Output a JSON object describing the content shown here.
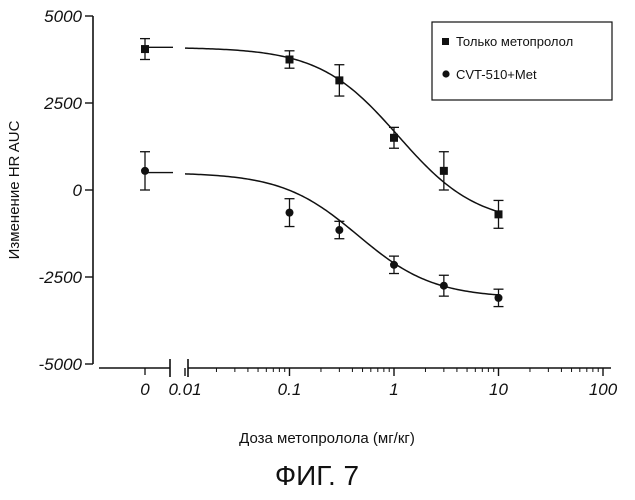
{
  "figure_label": "ФИГ. 7",
  "chart_data": {
    "type": "scatter",
    "xlabel": "Доза метопролола (мг/кг)",
    "ylabel": "Изменение HR AUC",
    "xscale": "log",
    "xlim": [
      0.01,
      100
    ],
    "ylim": [
      -5000,
      5000
    ],
    "y_ticks": [
      "5000",
      "2500",
      "0",
      "-2500",
      "-5000"
    ],
    "x_ticks": [
      "0.01",
      "0.1",
      "1",
      "10",
      "100"
    ],
    "zero_dose_tick": "0",
    "legend_position": "top-right",
    "grid": false,
    "series": [
      {
        "name": "Только метопролол",
        "marker": "square",
        "zero_dose": {
          "y": 4050,
          "err": 300
        },
        "points": [
          {
            "x": 0.1,
            "y": 3750,
            "err": 250
          },
          {
            "x": 0.3,
            "y": 3150,
            "err": 450
          },
          {
            "x": 1,
            "y": 1500,
            "err": 300
          },
          {
            "x": 3,
            "y": 550,
            "err": 550
          },
          {
            "x": 10,
            "y": -700,
            "err": 400
          }
        ],
        "curve": {
          "top": 4100,
          "bottom": -1000,
          "ec50": 1.1,
          "hill": 1.15
        }
      },
      {
        "name": "CVT-510+Met",
        "marker": "circle",
        "zero_dose": {
          "y": 550,
          "err": 550
        },
        "points": [
          {
            "x": 0.1,
            "y": -650,
            "err": 400
          },
          {
            "x": 0.3,
            "y": -1150,
            "err": 250
          },
          {
            "x": 1,
            "y": -2150,
            "err": 250
          },
          {
            "x": 3,
            "y": -2750,
            "err": 300
          },
          {
            "x": 10,
            "y": -3100,
            "err": 250
          }
        ],
        "curve": {
          "top": 500,
          "bottom": -3100,
          "ec50": 0.45,
          "hill": 1.2
        }
      }
    ]
  }
}
